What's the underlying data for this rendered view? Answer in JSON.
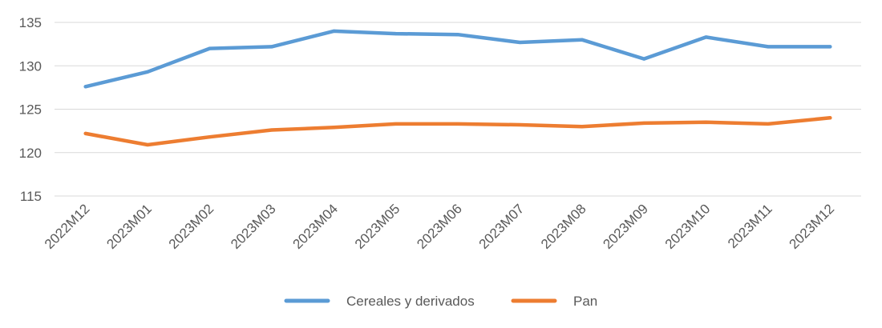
{
  "chart_data": {
    "type": "line",
    "title": "",
    "xlabel": "",
    "ylabel": "",
    "categories": [
      "2022M12",
      "2023M01",
      "2023M02",
      "2023M03",
      "2023M04",
      "2023M05",
      "2023M06",
      "2023M07",
      "2023M08",
      "2023M09",
      "2023M10",
      "2023M11",
      "2023M12"
    ],
    "ylim": [
      115,
      135
    ],
    "yticks": [
      "115",
      "120",
      "125",
      "130",
      "135"
    ],
    "grid": true,
    "legend_position": "bottom",
    "series": [
      {
        "name": "Cereales y derivados",
        "color": "#5B9BD5",
        "values": [
          127.6,
          129.3,
          132.0,
          132.2,
          134.0,
          133.7,
          133.6,
          132.7,
          133.0,
          130.8,
          133.3,
          132.2,
          132.2
        ]
      },
      {
        "name": "Pan",
        "color": "#ED7D31",
        "values": [
          122.2,
          120.9,
          121.8,
          122.6,
          122.9,
          123.3,
          123.3,
          123.2,
          123.0,
          123.4,
          123.5,
          123.3,
          124.0
        ]
      }
    ]
  }
}
